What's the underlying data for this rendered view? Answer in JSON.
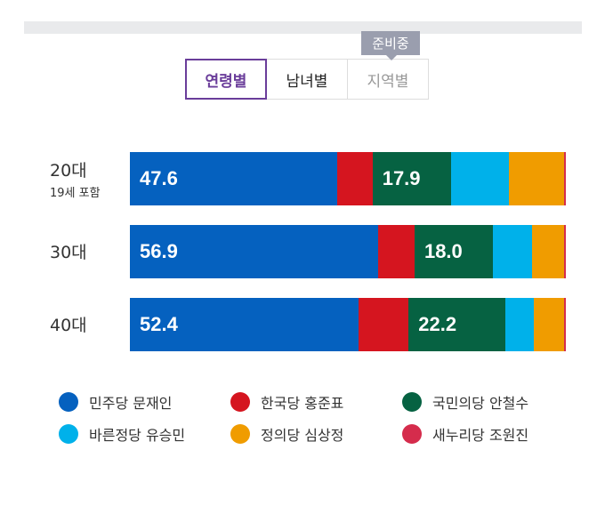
{
  "tabs": [
    {
      "label": "연령별",
      "state": "active"
    },
    {
      "label": "남녀별",
      "state": "normal"
    },
    {
      "label": "지역별",
      "state": "disabled"
    }
  ],
  "tooltip": "준비중",
  "chart_data": {
    "type": "bar",
    "orientation": "horizontal",
    "stacked": true,
    "xlim": [
      0,
      100
    ],
    "categories": [
      {
        "label": "20대",
        "sub": "19세 포함"
      },
      {
        "label": "30대",
        "sub": ""
      },
      {
        "label": "40대",
        "sub": ""
      }
    ],
    "series": [
      {
        "name": "민주당 문재인",
        "color": "#0561bf",
        "values": [
          47.6,
          56.9,
          52.4
        ],
        "labels": [
          "47.6",
          "56.9",
          "52.4"
        ]
      },
      {
        "name": "한국당 홍준표",
        "color": "#d5151f",
        "values": [
          8.0,
          8.4,
          11.4
        ],
        "labels": [
          "",
          "",
          ""
        ]
      },
      {
        "name": "국민의당 안철수",
        "color": "#066242",
        "values": [
          17.9,
          18.0,
          22.2
        ],
        "labels": [
          "17.9",
          "18.0",
          "22.2"
        ]
      },
      {
        "name": "바른정당 유승민",
        "color": "#00b1ea",
        "values": [
          13.3,
          9.0,
          6.5
        ],
        "labels": [
          "",
          "",
          ""
        ]
      },
      {
        "name": "정의당 심상정",
        "color": "#f09c00",
        "values": [
          12.7,
          7.4,
          6.9
        ],
        "labels": [
          "",
          "",
          ""
        ]
      },
      {
        "name": "새누리당 조원진",
        "color": "#d52c4c",
        "values": [
          0.4,
          0.3,
          0.4
        ],
        "labels": [
          "",
          "",
          ""
        ]
      }
    ]
  }
}
